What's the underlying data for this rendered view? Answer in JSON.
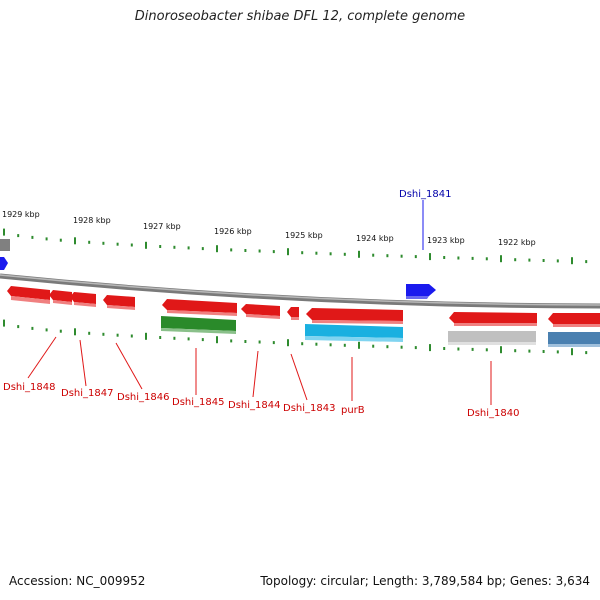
{
  "title": "Dinoroseobacter shibae DFL 12, complete genome",
  "footer": {
    "accession": "Accession: NC_009952",
    "summary": "Topology: circular; Length: 3,789,584 bp; Genes: 3,634"
  },
  "colors": {
    "backbone": "#8a8a8a",
    "ticks": "#2e8b2e",
    "red_gene": "#e01818",
    "blue_gene": "#1a1aee",
    "green_gene": "#2a8a2a",
    "cyan_gene": "#1ab0e0",
    "grey_gene": "#c0c0c0",
    "steel_gene": "#4a80b0",
    "red_label": "#cc0000",
    "blue_label": "#0000aa"
  },
  "scale_labels": [
    "1929 kbp",
    "1928 kbp",
    "1927 kbp",
    "1926 kbp",
    "1925 kbp",
    "1924 kbp",
    "1923 kbp",
    "1922 kbp"
  ],
  "gene_labels": [
    {
      "text": "Dshi_1841",
      "color": "blue"
    },
    {
      "text": "Dshi_1848",
      "color": "red"
    },
    {
      "text": "Dshi_1847",
      "color": "red"
    },
    {
      "text": "Dshi_1846",
      "color": "red"
    },
    {
      "text": "Dshi_1845",
      "color": "red"
    },
    {
      "text": "Dshi_1844",
      "color": "red"
    },
    {
      "text": "Dshi_1843",
      "color": "red"
    },
    {
      "text": "purB",
      "color": "red"
    },
    {
      "text": "Dshi_1840",
      "color": "red"
    }
  ]
}
